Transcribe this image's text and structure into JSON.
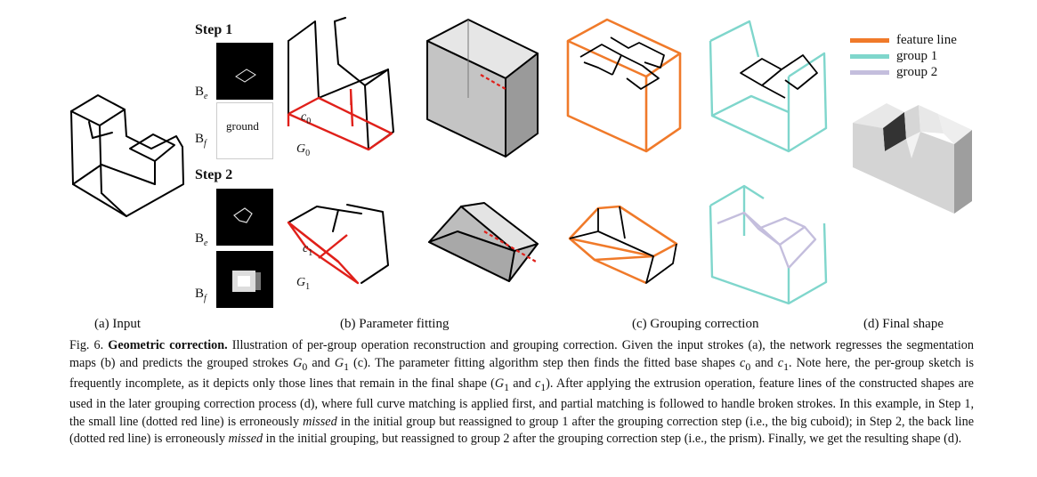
{
  "steps": {
    "step1": "Step 1",
    "step2": "Step 2"
  },
  "maps": {
    "be": "B",
    "be_sub": "e",
    "bf": "B",
    "bf_sub": "f",
    "ground": "ground"
  },
  "symbols": {
    "c0": "c",
    "c0_sub": "0",
    "c1": "c",
    "c1_sub": "1",
    "g0": "G",
    "g0_sub": "0",
    "g1": "G",
    "g1_sub": "1"
  },
  "legend": {
    "items": [
      {
        "label": "feature line",
        "color": "#f07a2a"
      },
      {
        "label": "group 1",
        "color": "#7fd6cc"
      },
      {
        "label": "group 2",
        "color": "#c4bedd"
      }
    ]
  },
  "panels": {
    "a": "(a) Input",
    "b": "(b) Parameter fitting",
    "c": "(c) Grouping correction",
    "d": "(d) Final shape"
  },
  "caption": {
    "fig": "Fig. 6.",
    "title": "Geometric correction.",
    "p1": " Illustration of per-group operation reconstruction and grouping correction. Given the input strokes (a), the network regresses the segmentation maps (b) and predicts the grouped strokes ",
    "g0": "G",
    "g0_sub": "0",
    "p2": " and ",
    "g1": "G",
    "g1_sub": "1",
    "p3": " (c). The parameter fitting algorithm step then finds the fitted base shapes ",
    "c0": "c",
    "c0_sub": "0",
    "p4": " and ",
    "c1": "c",
    "c1_sub": "1",
    "p5": ". Note here, the per-group sketch is frequently incomplete, as it depicts only those lines that remain in the final shape (",
    "g1b": "G",
    "g1b_sub": "1",
    "p6": " and ",
    "c1b": "c",
    "c1b_sub": "1",
    "p7": "). After applying the extrusion operation, feature lines of the constructed shapes are used in the later grouping correction process (d), where full curve matching is applied first, and partial matching is followed to handle broken strokes. In this example, in Step 1, the small line (dotted red line) is erroneously ",
    "missed1": "missed",
    "p8": " in the initial group but reassigned to group 1 after the grouping correction step (i.e., the big cuboid); in Step 2, the back line (dotted red line) is erroneously ",
    "missed2": "missed",
    "p9": " in the initial grouping, but reassigned to group 2 after the grouping correction step (i.e., the prism). Finally, we get the resulting shape (d)."
  }
}
